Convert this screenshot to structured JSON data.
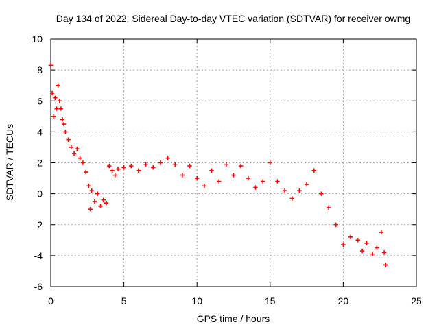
{
  "chart_data": {
    "type": "scatter",
    "title": "Day 134 of 2022, Sidereal Day-to-day VTEC variation (SDTVAR) for receiver owmg",
    "xlabel": "GPS time / hours",
    "ylabel": "SDTVAR / TECUs",
    "xlim": [
      0,
      25
    ],
    "ylim": [
      -6,
      10
    ],
    "xticks": [
      0,
      5,
      10,
      15,
      20,
      25
    ],
    "yticks": [
      -6,
      -4,
      -2,
      0,
      2,
      4,
      6,
      8,
      10
    ],
    "grid": true,
    "marker": "+",
    "series": [
      {
        "name": "SDTVAR",
        "color": "#ff0000",
        "x": [
          0.0,
          0.1,
          0.2,
          0.3,
          0.4,
          0.5,
          0.6,
          0.7,
          0.8,
          0.9,
          1.0,
          1.2,
          1.4,
          1.6,
          1.8,
          2.0,
          2.2,
          2.4,
          2.6,
          2.7,
          2.8,
          3.0,
          3.2,
          3.4,
          3.6,
          3.8,
          4.0,
          4.2,
          4.4,
          4.6,
          5.0,
          5.5,
          6.0,
          6.5,
          7.0,
          7.5,
          8.0,
          8.5,
          9.0,
          9.5,
          10.0,
          10.5,
          11.0,
          11.5,
          12.0,
          12.5,
          13.0,
          13.5,
          14.0,
          14.5,
          15.0,
          15.5,
          16.0,
          16.5,
          17.0,
          17.5,
          18.0,
          18.5,
          19.0,
          19.5,
          20.0,
          20.5,
          21.0,
          21.3,
          21.6,
          22.0,
          22.3,
          22.6,
          22.8,
          22.9
        ],
        "y": [
          8.3,
          6.5,
          5.0,
          6.2,
          5.5,
          7.0,
          6.0,
          5.5,
          4.8,
          4.5,
          4.0,
          3.5,
          3.0,
          2.6,
          2.9,
          2.3,
          2.0,
          1.4,
          0.5,
          -1.0,
          0.2,
          -0.5,
          0.0,
          -0.8,
          -0.4,
          -0.6,
          1.8,
          1.5,
          1.2,
          1.6,
          1.7,
          1.8,
          1.5,
          1.9,
          1.7,
          2.0,
          2.3,
          1.9,
          1.2,
          1.8,
          1.0,
          0.5,
          1.5,
          0.8,
          1.9,
          1.2,
          1.8,
          1.0,
          0.4,
          0.8,
          2.0,
          0.8,
          0.2,
          -0.3,
          0.2,
          0.6,
          1.5,
          0.0,
          -0.9,
          -2.0,
          -3.3,
          -2.8,
          -3.0,
          -3.7,
          -3.2,
          -3.9,
          -3.5,
          -2.5,
          -3.8,
          -4.6
        ]
      }
    ]
  }
}
